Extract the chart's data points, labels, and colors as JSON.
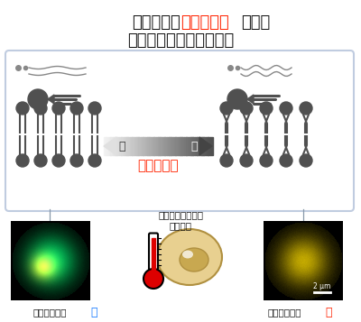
{
  "title_line1_black1": "脂質分子の",
  "title_line1_red": "折れ曲がり",
  "title_line1_black2": "により",
  "title_line2": "細胞の温度は調節される",
  "box_border": "#c0cce0",
  "arrow_left_label": "少",
  "arrow_right_label": "多",
  "arrow_center_label": "折れ曲がり",
  "bottom_center_label1": "ショウジョウバエ",
  "bottom_center_label2": "培養細胞",
  "bottom_left_label1": "細胞内の温度",
  "bottom_left_label2": "低",
  "bottom_right_label1": "細胞内の温度",
  "bottom_right_label2": "高",
  "scale_label": "2 μm",
  "red_color": "#ff2200",
  "blue_color": "#1177ff",
  "gray_dark": "#505050",
  "gray_mid": "#888888",
  "gray_light": "#cccccc",
  "white": "#ffffff",
  "black": "#111111",
  "bg_color": "#ffffff",
  "cell_color": "#e8d090",
  "cell_border": "#b09040",
  "nuc_color": "#c8a850",
  "therm_red": "#dd0000"
}
